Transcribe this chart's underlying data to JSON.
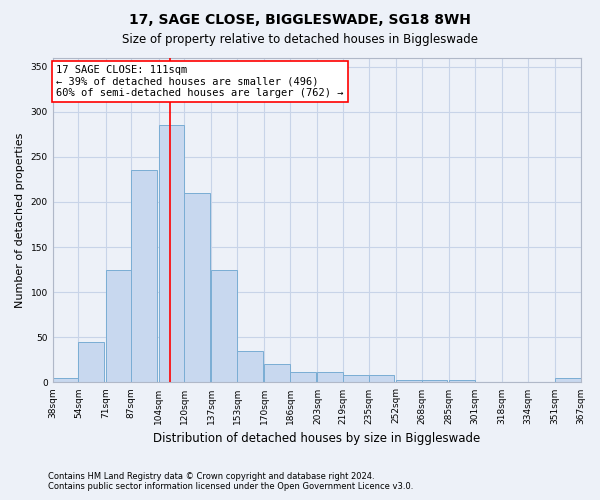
{
  "title1": "17, SAGE CLOSE, BIGGLESWADE, SG18 8WH",
  "title2": "Size of property relative to detached houses in Biggleswade",
  "xlabel": "Distribution of detached houses by size in Biggleswade",
  "ylabel": "Number of detached properties",
  "footnote1": "Contains HM Land Registry data © Crown copyright and database right 2024.",
  "footnote2": "Contains public sector information licensed under the Open Government Licence v3.0.",
  "bar_color": "#c8d8ef",
  "bar_edge_color": "#7aadd4",
  "grid_color": "#c8d4e8",
  "vline_color": "red",
  "vline_x": 111,
  "annotation_line1": "17 SAGE CLOSE: 111sqm",
  "annotation_line2": "← 39% of detached houses are smaller (496)",
  "annotation_line3": "60% of semi-detached houses are larger (762) →",
  "annotation_box_color": "white",
  "annotation_box_edge": "red",
  "bins": [
    38,
    54,
    71,
    87,
    104,
    120,
    137,
    153,
    170,
    186,
    203,
    219,
    235,
    252,
    268,
    285,
    301,
    318,
    334,
    351,
    367
  ],
  "counts": [
    5,
    45,
    125,
    235,
    285,
    210,
    125,
    35,
    20,
    12,
    12,
    8,
    8,
    3,
    3,
    3,
    0,
    0,
    0,
    5
  ],
  "ylim": [
    0,
    360
  ],
  "yticks": [
    0,
    50,
    100,
    150,
    200,
    250,
    300,
    350
  ],
  "bg_color": "#edf1f8",
  "title_fontsize": 10,
  "subtitle_fontsize": 8.5,
  "ylabel_fontsize": 8,
  "xlabel_fontsize": 8.5,
  "tick_fontsize": 6.5,
  "annot_fontsize": 7.5,
  "footnote_fontsize": 6
}
